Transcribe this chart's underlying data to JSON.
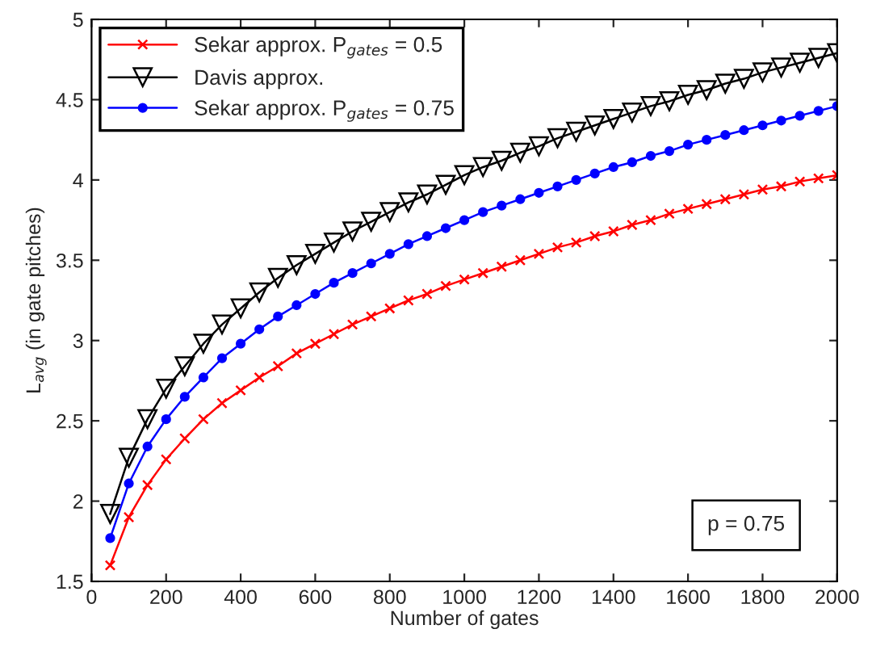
{
  "chart_data": {
    "type": "line",
    "xlabel": "Number of gates",
    "ylabel": "L$_{avg}$ (in gate pitches)",
    "x": [
      50,
      100,
      150,
      200,
      250,
      300,
      350,
      400,
      450,
      500,
      550,
      600,
      650,
      700,
      750,
      800,
      850,
      900,
      950,
      1000,
      1050,
      1100,
      1150,
      1200,
      1250,
      1300,
      1350,
      1400,
      1450,
      1500,
      1550,
      1600,
      1650,
      1700,
      1750,
      1800,
      1850,
      1900,
      1950,
      2000
    ],
    "series": [
      {
        "name": "Sekar approx. P$_{gates}$ = 0.5",
        "color": "#ff0000",
        "marker": "cross",
        "values": [
          1.6,
          1.9,
          2.1,
          2.26,
          2.39,
          2.51,
          2.61,
          2.69,
          2.77,
          2.84,
          2.92,
          2.98,
          3.04,
          3.1,
          3.15,
          3.2,
          3.25,
          3.29,
          3.34,
          3.38,
          3.42,
          3.46,
          3.5,
          3.54,
          3.58,
          3.61,
          3.65,
          3.68,
          3.72,
          3.75,
          3.79,
          3.82,
          3.85,
          3.88,
          3.91,
          3.94,
          3.96,
          3.99,
          4.01,
          4.03
        ]
      },
      {
        "name": "Davis approx.",
        "color": "#000000",
        "marker": "triangle",
        "values": [
          1.92,
          2.27,
          2.51,
          2.7,
          2.84,
          2.98,
          3.1,
          3.2,
          3.3,
          3.39,
          3.47,
          3.54,
          3.61,
          3.68,
          3.74,
          3.8,
          3.86,
          3.91,
          3.97,
          4.03,
          4.08,
          4.12,
          4.17,
          4.21,
          4.26,
          4.3,
          4.34,
          4.38,
          4.42,
          4.46,
          4.49,
          4.53,
          4.56,
          4.6,
          4.63,
          4.67,
          4.7,
          4.73,
          4.76,
          4.79
        ]
      },
      {
        "name": "Sekar approx. P$_{gates}$ = 0.75",
        "color": "#0000ff",
        "marker": "circle",
        "values": [
          1.77,
          2.11,
          2.34,
          2.51,
          2.65,
          2.77,
          2.89,
          2.98,
          3.07,
          3.15,
          3.22,
          3.29,
          3.36,
          3.42,
          3.48,
          3.54,
          3.6,
          3.65,
          3.7,
          3.75,
          3.8,
          3.84,
          3.88,
          3.92,
          3.96,
          4.0,
          4.04,
          4.08,
          4.11,
          4.15,
          4.18,
          4.22,
          4.25,
          4.28,
          4.31,
          4.34,
          4.37,
          4.4,
          4.43,
          4.46
        ]
      }
    ],
    "annotations": [
      "p = 0.75"
    ],
    "xlim": [
      0,
      2000
    ],
    "xticks": [
      0,
      200,
      400,
      600,
      800,
      1000,
      1200,
      1400,
      1600,
      1800,
      2000
    ],
    "ylim": [
      1.5,
      5
    ],
    "yticks": [
      1.5,
      2,
      2.5,
      3,
      3.5,
      4,
      4.5,
      5
    ],
    "legend": "top left",
    "grid": false,
    "line_style": "solid"
  }
}
